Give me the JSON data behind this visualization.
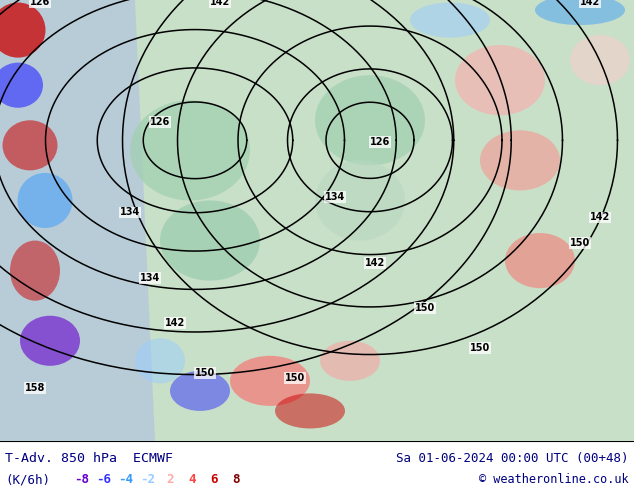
{
  "title_left": "T-Adv. 850 hPa  ECMWF",
  "title_right": "Sa 01-06-2024 00:00 UTC (00+48)",
  "subtitle_left": "(K/6h)",
  "copyright": "© weatheronline.co.uk",
  "legend_values": [
    "-8",
    "-6",
    "-4",
    "-2",
    "2",
    "4",
    "6",
    "8"
  ],
  "legend_colors": [
    "#6600cc",
    "#3333ff",
    "#3399ff",
    "#99ccff",
    "#ffaaaa",
    "#ff4444",
    "#cc0000",
    "#800000"
  ],
  "bg_color": "#ffffff",
  "title_color": "#000080",
  "map_bg_color": "#c8dfc8",
  "figsize": [
    6.34,
    4.9
  ],
  "dpi": 100
}
